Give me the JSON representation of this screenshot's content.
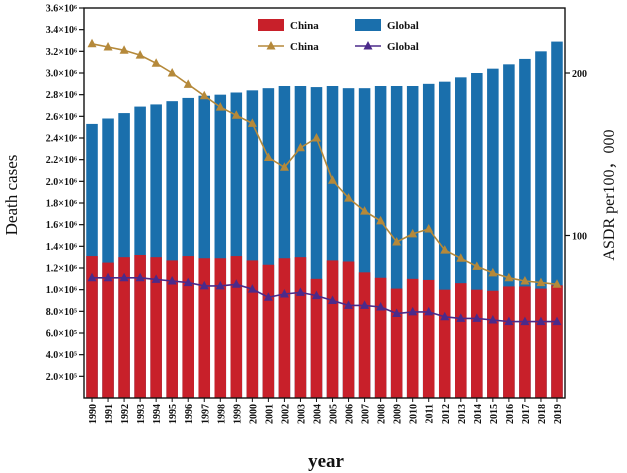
{
  "chart_data": {
    "type": "bar+line",
    "categories": [
      "1990",
      "1991",
      "1992",
      "1993",
      "1994",
      "1995",
      "1996",
      "1997",
      "1998",
      "1999",
      "2000",
      "2001",
      "2002",
      "2003",
      "2004",
      "2005",
      "2006",
      "2007",
      "2008",
      "2009",
      "2010",
      "2011",
      "2012",
      "2013",
      "2014",
      "2015",
      "2016",
      "2017",
      "2018",
      "2019"
    ],
    "xlabel": "year",
    "ylabel_left": "Death cases",
    "ylabel_right": "ASDR per100，000",
    "ylim_left": [
      0,
      3600000
    ],
    "ylim_right": [
      0,
      240
    ],
    "left_ticks": [
      {
        "value": 200000,
        "label": "2.0×10⁵"
      },
      {
        "value": 400000,
        "label": "4.0×10⁵"
      },
      {
        "value": 600000,
        "label": "6.0×10⁵"
      },
      {
        "value": 800000,
        "label": "8.0×10⁵"
      },
      {
        "value": 1000000,
        "label": "1.0×10⁶"
      },
      {
        "value": 1200000,
        "label": "1.2×10⁶"
      },
      {
        "value": 1400000,
        "label": "1.4×10⁶"
      },
      {
        "value": 1600000,
        "label": "1.6×10⁶"
      },
      {
        "value": 1800000,
        "label": "1.8×10⁶"
      },
      {
        "value": 2000000,
        "label": "2.0×10⁶"
      },
      {
        "value": 2200000,
        "label": "2.2×10⁶"
      },
      {
        "value": 2400000,
        "label": "2.4×10⁶"
      },
      {
        "value": 2600000,
        "label": "2.6×10⁶"
      },
      {
        "value": 2800000,
        "label": "2.8×10⁶"
      },
      {
        "value": 3000000,
        "label": "3.0×10⁶"
      },
      {
        "value": 3200000,
        "label": "3.2×10⁶"
      },
      {
        "value": 3400000,
        "label": "3.4×10⁶"
      },
      {
        "value": 3600000,
        "label": "3.6×10⁶"
      }
    ],
    "right_ticks": [
      {
        "value": 100,
        "label": "100"
      },
      {
        "value": 200,
        "label": "200"
      }
    ],
    "bar_series": [
      {
        "name": "China",
        "color": "#c8202a",
        "values": [
          1310000,
          1250000,
          1300000,
          1320000,
          1300000,
          1270000,
          1310000,
          1290000,
          1290000,
          1310000,
          1270000,
          1230000,
          1290000,
          1300000,
          1100000,
          1270000,
          1260000,
          1160000,
          1110000,
          1010000,
          1100000,
          1090000,
          1000000,
          1060000,
          1000000,
          990000,
          1030000,
          1030000,
          1010000,
          1040000
        ]
      },
      {
        "name": "Global",
        "color": "#1a6fac",
        "values": [
          2530000,
          2580000,
          2630000,
          2690000,
          2710000,
          2740000,
          2770000,
          2790000,
          2800000,
          2820000,
          2840000,
          2860000,
          2880000,
          2880000,
          2870000,
          2880000,
          2860000,
          2860000,
          2880000,
          2880000,
          2880000,
          2900000,
          2920000,
          2960000,
          3000000,
          3040000,
          3080000,
          3130000,
          3200000,
          3290000
        ]
      }
    ],
    "line_series": [
      {
        "name": "China",
        "color": "#b5893a",
        "marker": "triangle",
        "values": [
          218,
          216,
          214,
          211,
          206,
          200,
          193,
          186,
          179,
          174,
          169,
          148,
          142,
          154,
          160,
          134,
          123,
          115,
          109,
          96,
          101,
          104,
          91,
          86,
          81,
          77,
          74,
          72,
          71,
          70
        ]
      },
      {
        "name": "Global",
        "color": "#4b2a8a",
        "marker": "triangle",
        "values": [
          74,
          74,
          74,
          74,
          73,
          72,
          71,
          69,
          69,
          70,
          67,
          62,
          64,
          65,
          63,
          60,
          57,
          57,
          56,
          52,
          53,
          53,
          50,
          49,
          49,
          48,
          47,
          47,
          47,
          47
        ]
      }
    ],
    "legend": {
      "placement": "top-center",
      "entries": [
        {
          "label": "China",
          "kind": "bar",
          "series": "China"
        },
        {
          "label": "Global",
          "kind": "bar",
          "series": "Global"
        },
        {
          "label": "China",
          "kind": "line",
          "series": "China"
        },
        {
          "label": "Global",
          "kind": "line",
          "series": "Global"
        }
      ]
    }
  }
}
